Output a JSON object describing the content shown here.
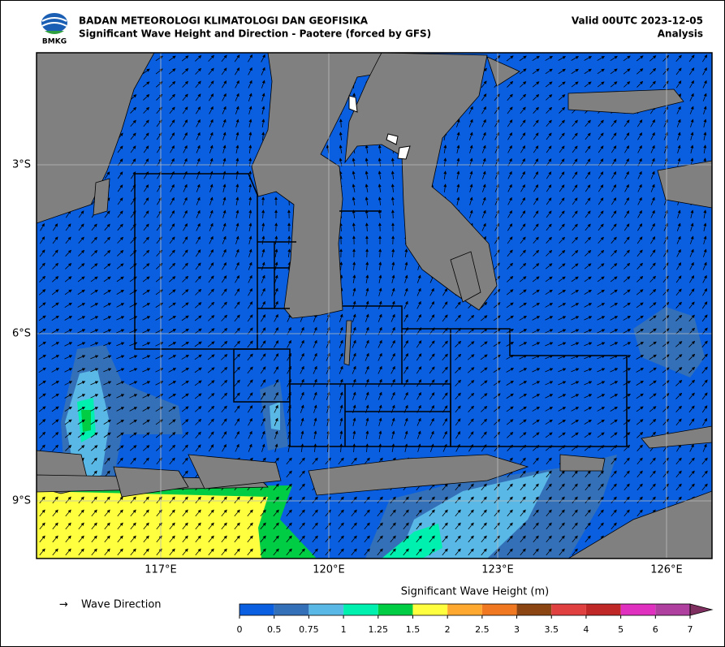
{
  "header": {
    "logo": "BMKG",
    "agency": "BADAN METEOROLOGI KLIMATOLOGI DAN GEOFISIKA",
    "title": "Significant Wave Height and Direction - Paotere (forced by GFS)",
    "valid": "Valid 00UTC 2023-12-05",
    "run": "Analysis"
  },
  "map": {
    "lat_labels": [
      "3°S",
      "6°S",
      "9°S"
    ],
    "lon_labels": [
      "117°E",
      "120°E",
      "123°E",
      "126°E"
    ]
  },
  "legend": {
    "direction_label": "Wave Direction",
    "colorbar_title": "Significant Wave Height (m)",
    "ticks": [
      "0",
      "0.5",
      "0.75",
      "1",
      "1.25",
      "1.5",
      "2",
      "2.5",
      "3",
      "3.5",
      "4",
      "5",
      "6",
      "7"
    ],
    "colors": [
      "#0a5fe0",
      "#3470b8",
      "#5ab8e6",
      "#00f0b0",
      "#00cc44",
      "#ffff40",
      "#ffa830",
      "#f07820",
      "#8b4513",
      "#e04040",
      "#c02828",
      "#e030c0",
      "#b040a0"
    ],
    "extend_color": "#803060"
  }
}
